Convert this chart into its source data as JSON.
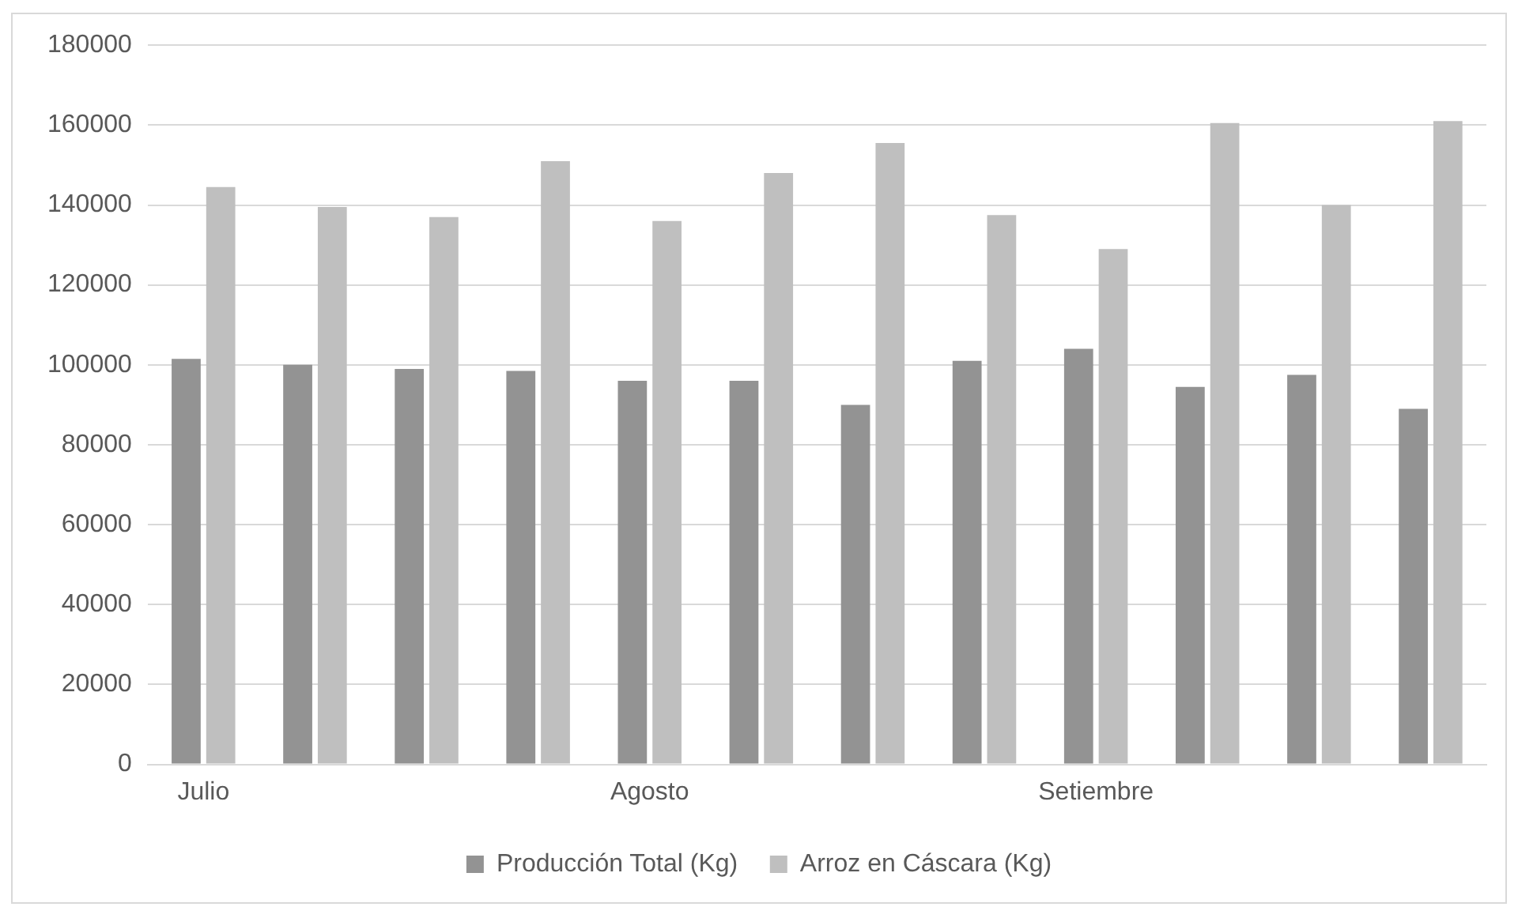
{
  "chart_data": {
    "type": "bar",
    "categories": [
      "Julio",
      null,
      null,
      null,
      "Agosto",
      null,
      null,
      null,
      "Setiembre",
      null,
      null,
      null
    ],
    "series": [
      {
        "name": "Producción Total (Kg)",
        "color": "#939393",
        "values": [
          101500,
          100000,
          99000,
          98500,
          96000,
          96000,
          90000,
          101000,
          104000,
          94500,
          97500,
          89000
        ]
      },
      {
        "name": "Arroz en Cáscara (Kg)",
        "color": "#bfbfbf",
        "values": [
          144500,
          139500,
          137000,
          151000,
          136000,
          148000,
          155500,
          137500,
          129000,
          160500,
          140000,
          161000
        ]
      }
    ],
    "ylim": [
      0,
      180000
    ],
    "yticks": [
      0,
      20000,
      40000,
      60000,
      80000,
      100000,
      120000,
      140000,
      160000,
      180000
    ],
    "grid": "y",
    "legend": "bottom"
  }
}
